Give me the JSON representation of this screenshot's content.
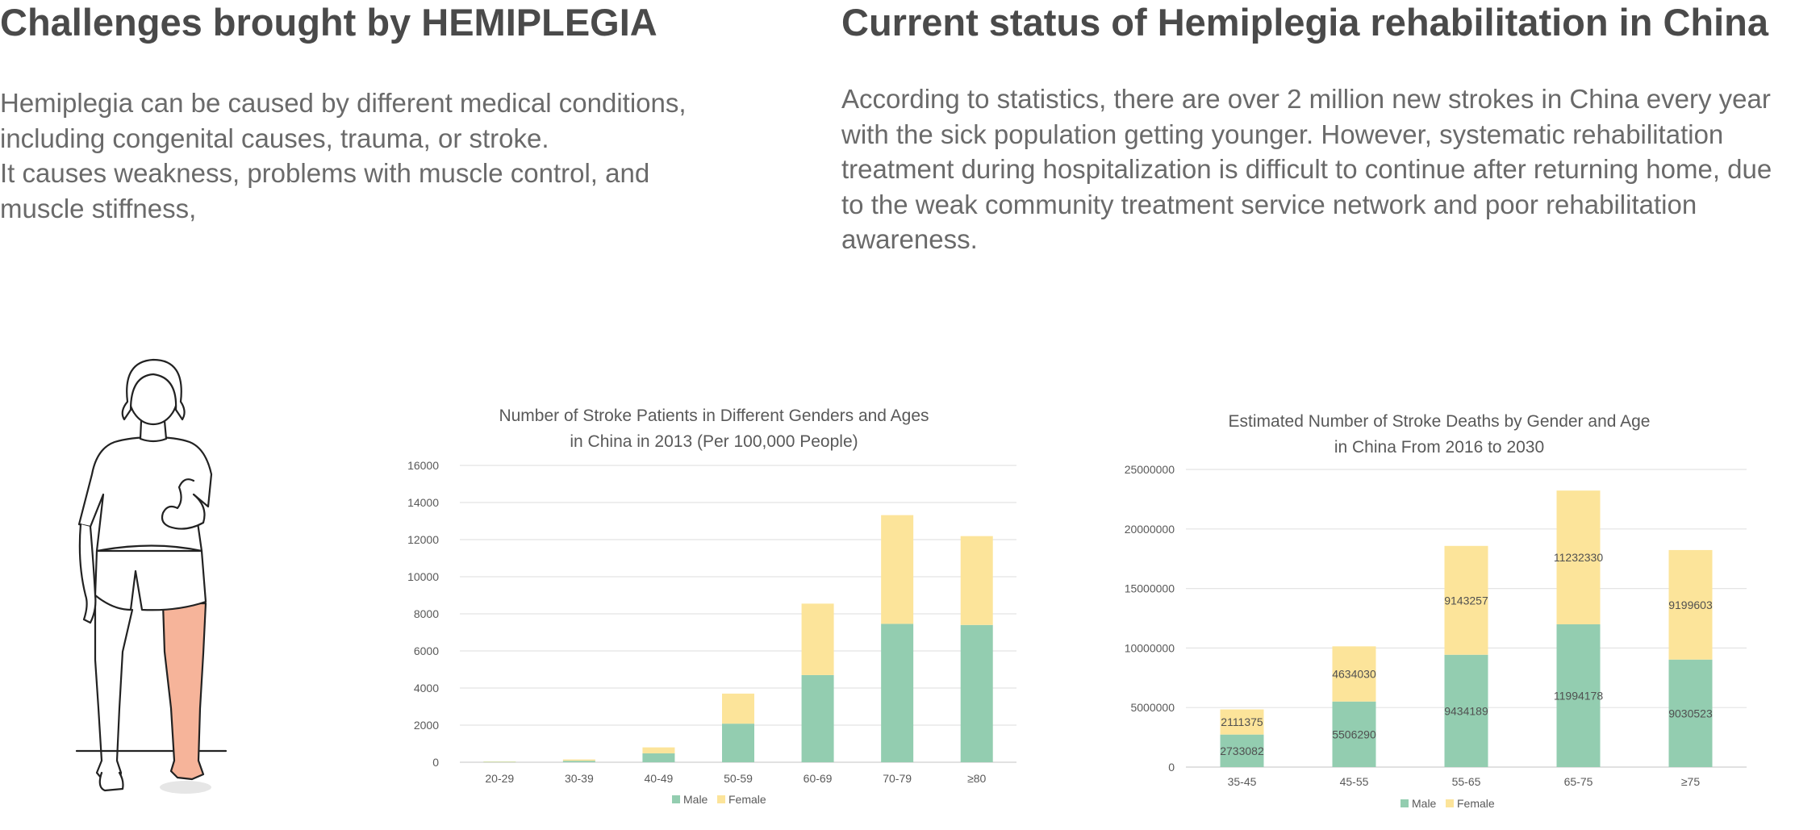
{
  "left_section": {
    "heading": "Challenges brought by HEMIPLEGIA",
    "lines": [
      "Hemiplegia can be caused by different medical conditions,",
      "including congenital causes, trauma, or stroke.",
      "It causes weakness, problems with muscle control, and",
      "muscle stiffness,"
    ]
  },
  "right_section": {
    "heading": "Current status of Hemiplegia rehabilitation in China",
    "lines": [
      "According to statistics, there are over 2 million new strokes in China every year",
      "with the sick population getting younger. However, systematic rehabilitation",
      "treatment during hospitalization is difficult to continue after returning home, due",
      "to the weak community treatment service network and poor rehabilitation",
      "awareness."
    ]
  },
  "colors": {
    "male": "#93cdb0",
    "female": "#fce49a",
    "affected_leg": "#f6b49a",
    "gridline": "#e4e4e4",
    "axis_text": "#595959"
  },
  "figure": {
    "icon": "hemiplegia-person-illustration"
  },
  "chart_data": [
    {
      "type": "bar",
      "stacked": true,
      "title_lines": [
        "Number of Stroke Patients in Different Genders and Ages",
        "in China in 2013 (Per 100,000 People)"
      ],
      "categories": [
        "20-29",
        "30-39",
        "40-49",
        "50-59",
        "60-69",
        "70-79",
        "≥80"
      ],
      "series": [
        {
          "name": "Male",
          "values": [
            20,
            80,
            480,
            2080,
            4700,
            7460,
            7400
          ]
        },
        {
          "name": "Female",
          "values": [
            20,
            70,
            320,
            1620,
            3850,
            5860,
            4790
          ]
        }
      ],
      "ylim": [
        0,
        16000
      ],
      "yticks": [
        "0",
        "2000",
        "4000",
        "6000",
        "8000",
        "10000",
        "12000",
        "14000",
        "16000"
      ],
      "grid": true,
      "legend": "bottom"
    },
    {
      "type": "bar",
      "stacked": true,
      "title_lines": [
        "Estimated Number of Stroke Deaths by Gender and Age",
        "in China From 2016 to 2030"
      ],
      "categories": [
        "35-45",
        "45-55",
        "55-65",
        "65-75",
        "≥75"
      ],
      "series": [
        {
          "name": "Male",
          "values": [
            2733082,
            5506290,
            9434189,
            11994178,
            9030523
          ]
        },
        {
          "name": "Female",
          "values": [
            2111375,
            4634030,
            9143257,
            11232330,
            9199603
          ]
        }
      ],
      "ylim": [
        0,
        25000000
      ],
      "yticks": [
        "0",
        "5000000",
        "10000000",
        "15000000",
        "20000000",
        "25000000"
      ],
      "grid": true,
      "legend": "bottom",
      "data_labels": true
    }
  ]
}
